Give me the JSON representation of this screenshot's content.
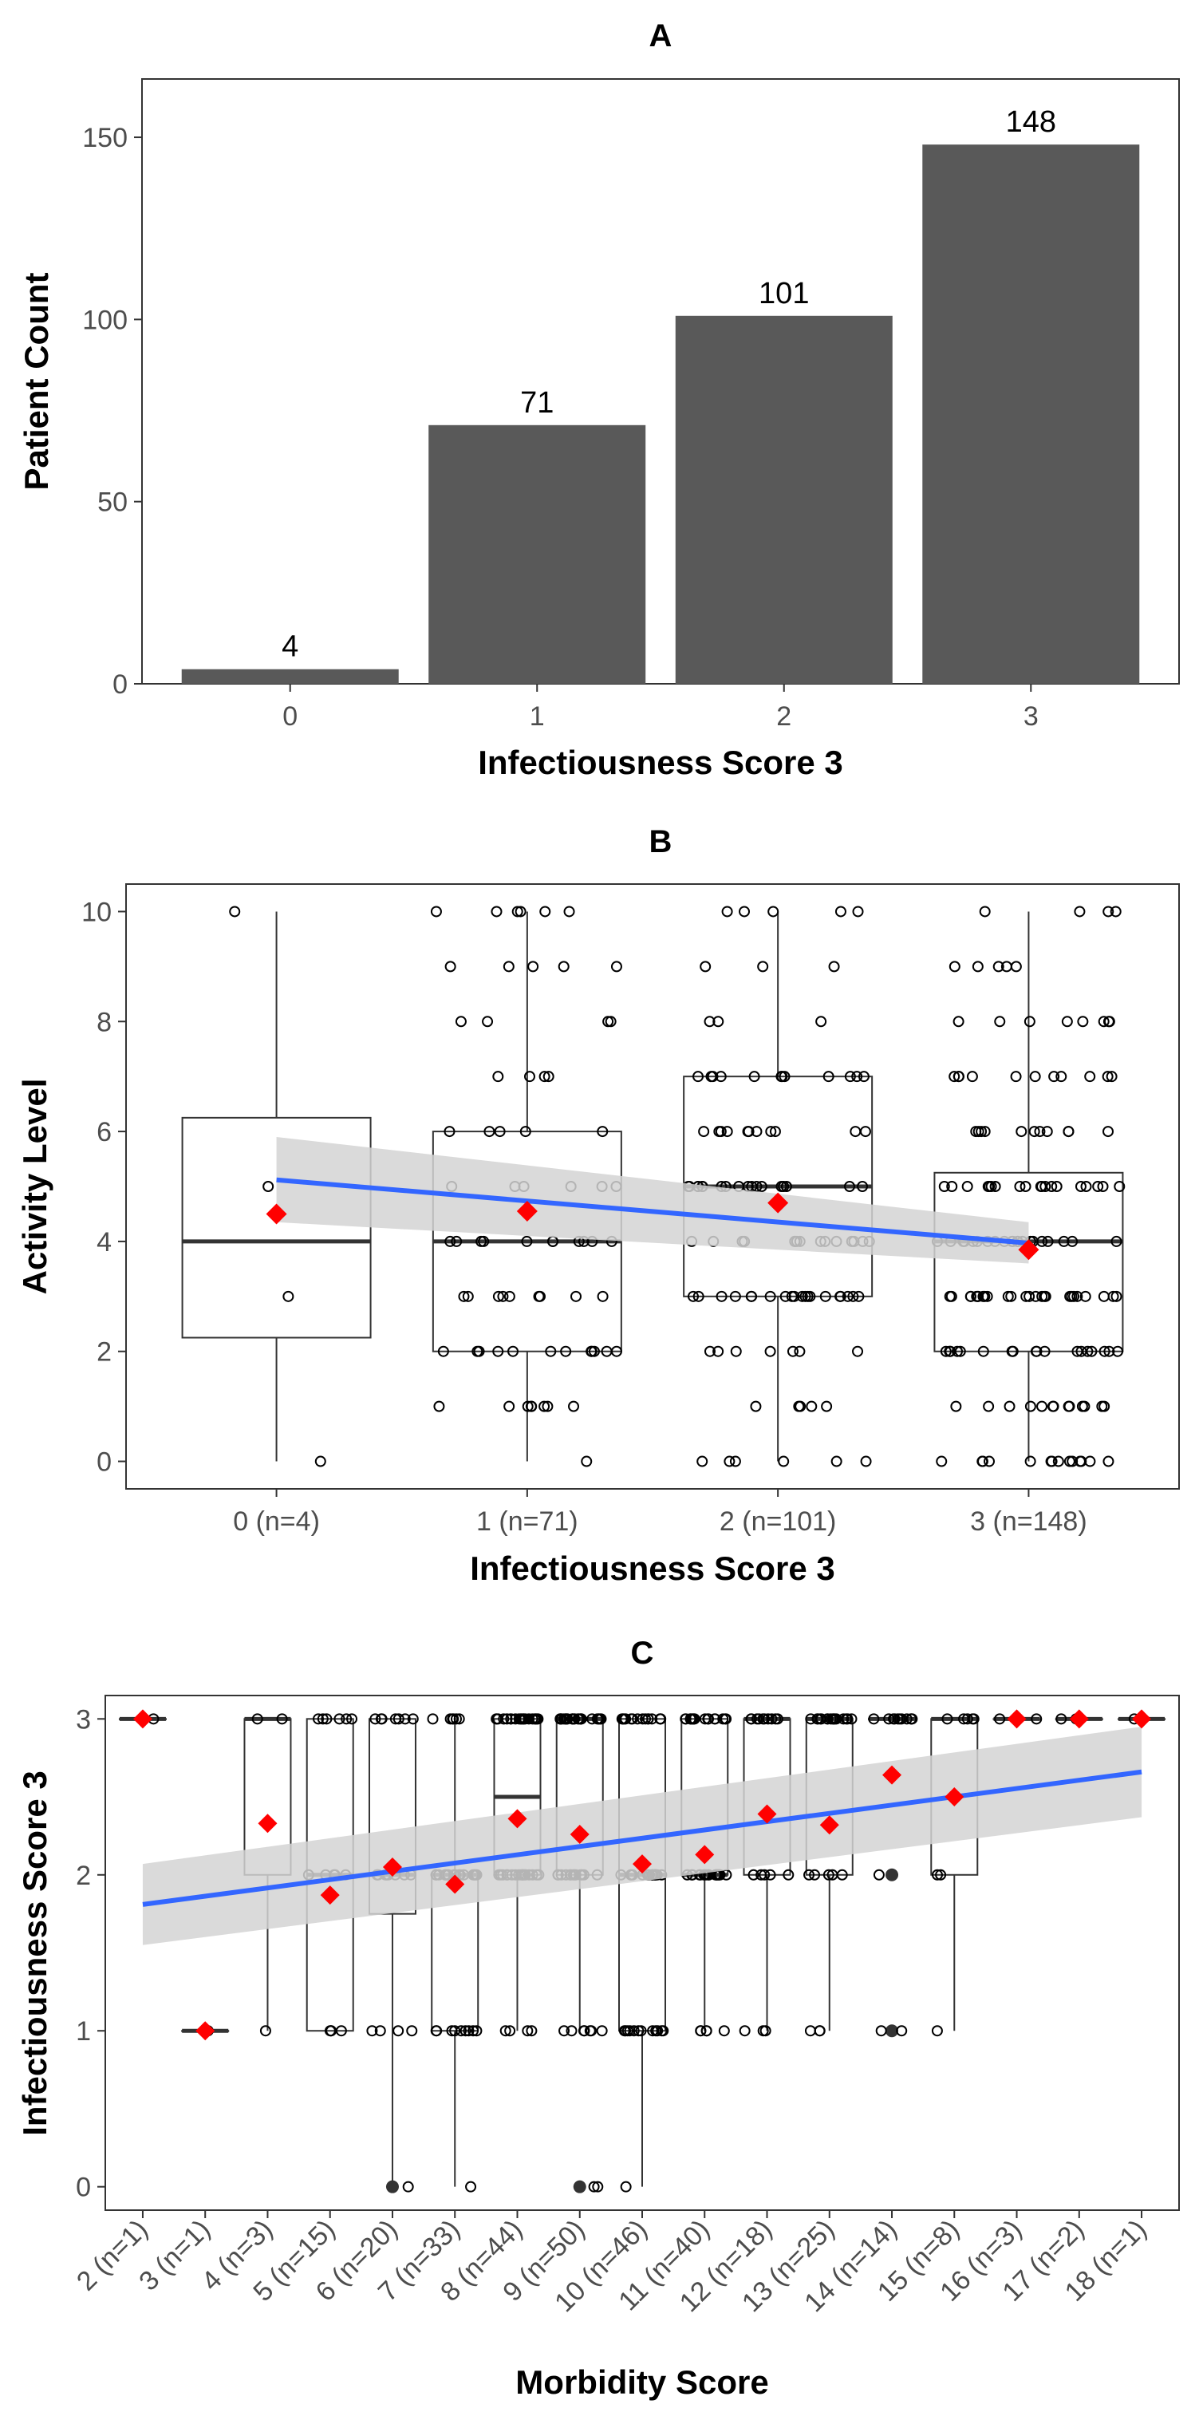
{
  "chart_data": [
    {
      "type": "bar",
      "title": "A",
      "xlabel": "Infectiousness Score 3",
      "ylabel": "Patient Count",
      "categories": [
        "0",
        "1",
        "2",
        "3"
      ],
      "values": [
        4,
        71,
        101,
        148
      ],
      "data_labels": [
        "4",
        "71",
        "101",
        "148"
      ],
      "ylim": [
        0,
        166
      ],
      "yticks": [
        0,
        50,
        100,
        150
      ],
      "ytick_labels": [
        "0",
        "50",
        "100",
        "150"
      ],
      "grid": false,
      "bar_color": "#595959"
    },
    {
      "type": "box",
      "title": "B",
      "xlabel": "Infectiousness Score 3",
      "ylabel": "Activity Level",
      "categories": [
        "0 (n=4)",
        "1 (n=71)",
        "2 (n=101)",
        "3 (n=148)"
      ],
      "ylim": [
        -0.5,
        10.5
      ],
      "yticks": [
        0,
        2,
        4,
        6,
        8,
        10
      ],
      "ytick_labels": [
        "0",
        "2",
        "4",
        "6",
        "8",
        "10"
      ],
      "boxes": [
        {
          "q1": 2.25,
          "median": 4,
          "q3": 6.25,
          "whisker_low": 0,
          "whisker_high": 10,
          "mean": 4.5
        },
        {
          "q1": 2,
          "median": 4,
          "q3": 6,
          "whisker_low": 0,
          "whisker_high": 10,
          "mean": 4.55
        },
        {
          "q1": 3,
          "median": 5,
          "q3": 7,
          "whisker_low": 0,
          "whisker_high": 10,
          "mean": 4.7
        },
        {
          "q1": 2,
          "median": 4,
          "q3": 5.25,
          "whisker_low": 0,
          "whisker_high": 10,
          "mean": 3.85
        }
      ],
      "trend": {
        "x_start": 1,
        "y_start": 5.12,
        "x_end": 4,
        "y_end": 3.97,
        "ci_start": [
          4.35,
          5.9
        ],
        "ci_end": [
          3.6,
          4.35
        ]
      },
      "points": [
        {
          "x": 1,
          "values": [
            0,
            3,
            5,
            10
          ]
        },
        {
          "x": 2,
          "values": [
            0,
            1,
            1,
            1,
            1,
            1,
            1,
            1,
            1,
            2,
            2,
            2,
            2,
            2,
            2,
            2,
            2,
            2,
            2,
            2,
            2,
            3,
            3,
            3,
            3,
            3,
            3,
            3,
            3,
            3,
            4,
            4,
            4,
            4,
            4,
            4,
            4,
            4,
            4,
            4,
            4,
            5,
            5,
            5,
            5,
            5,
            5,
            6,
            6,
            6,
            6,
            6,
            7,
            7,
            7,
            7,
            8,
            8,
            8,
            8,
            9,
            9,
            9,
            9,
            9,
            10,
            10,
            10,
            10,
            10,
            10
          ]
        },
        {
          "x": 3,
          "values": [
            0,
            0,
            0,
            0,
            0,
            0,
            1,
            1,
            1,
            1,
            1,
            2,
            2,
            2,
            2,
            2,
            2,
            2,
            3,
            3,
            3,
            3,
            3,
            3,
            3,
            3,
            3,
            3,
            3,
            3,
            3,
            3,
            3,
            3,
            3,
            3,
            3,
            3,
            4,
            4,
            4,
            4,
            4,
            4,
            4,
            4,
            4,
            4,
            4,
            4,
            4,
            4,
            4,
            5,
            5,
            5,
            5,
            5,
            5,
            5,
            5,
            5,
            5,
            5,
            5,
            5,
            5,
            5,
            5,
            5,
            5,
            6,
            6,
            6,
            6,
            6,
            6,
            6,
            6,
            6,
            6,
            6,
            7,
            7,
            7,
            7,
            7,
            7,
            7,
            7,
            7,
            7,
            7,
            7,
            8,
            8,
            8,
            9,
            9,
            9,
            10,
            10,
            10,
            10,
            10
          ]
        },
        {
          "x": 4,
          "values": [
            0,
            0,
            0,
            0,
            0,
            0,
            0,
            0,
            0,
            0,
            0,
            0,
            0,
            0,
            1,
            1,
            1,
            1,
            1,
            1,
            1,
            1,
            1,
            1,
            1,
            1,
            1,
            2,
            2,
            2,
            2,
            2,
            2,
            2,
            2,
            2,
            2,
            2,
            2,
            2,
            2,
            2,
            2,
            2,
            2,
            3,
            3,
            3,
            3,
            3,
            3,
            3,
            3,
            3,
            3,
            3,
            3,
            3,
            3,
            3,
            3,
            3,
            3,
            3,
            3,
            3,
            3,
            3,
            3,
            3,
            3,
            4,
            4,
            4,
            4,
            4,
            4,
            4,
            4,
            4,
            4,
            4,
            4,
            4,
            4,
            4,
            4,
            4,
            4,
            4,
            4,
            4,
            5,
            5,
            5,
            5,
            5,
            5,
            5,
            5,
            5,
            5,
            5,
            5,
            5,
            5,
            5,
            5,
            5,
            5,
            5,
            6,
            6,
            6,
            6,
            6,
            6,
            6,
            6,
            6,
            6,
            6,
            7,
            7,
            7,
            7,
            7,
            7,
            7,
            7,
            7,
            7,
            7,
            8,
            8,
            8,
            8,
            8,
            8,
            8,
            8,
            9,
            9,
            9,
            9,
            9,
            10,
            10,
            10,
            10
          ]
        }
      ],
      "mean_color": "#ff0000",
      "trend_color": "#3366ff",
      "ci_color": "#d3d3d3"
    },
    {
      "type": "box",
      "title": "C",
      "xlabel": "Morbidity Score",
      "ylabel": "Infectiousness Score 3",
      "categories": [
        "2 (n=1)",
        "3 (n=1)",
        "4 (n=3)",
        "5 (n=15)",
        "6 (n=20)",
        "7 (n=33)",
        "8 (n=44)",
        "9 (n=50)",
        "10 (n=46)",
        "11 (n=40)",
        "12 (n=18)",
        "13 (n=25)",
        "14 (n=14)",
        "15 (n=8)",
        "16 (n=3)",
        "17 (n=2)",
        "18 (n=1)"
      ],
      "ylim": [
        -0.15,
        3.15
      ],
      "yticks": [
        0,
        1,
        2,
        3
      ],
      "ytick_labels": [
        "0",
        "1",
        "2",
        "3"
      ],
      "boxes": [
        {
          "q1": 3,
          "median": 3,
          "q3": 3,
          "whisker_low": 3,
          "whisker_high": 3,
          "mean": 3.0
        },
        {
          "q1": 1,
          "median": 1,
          "q3": 1,
          "whisker_low": 1,
          "whisker_high": 1,
          "mean": 1.0
        },
        {
          "q1": 2,
          "median": 3,
          "q3": 3,
          "whisker_low": 1,
          "whisker_high": 3,
          "mean": 2.33
        },
        {
          "q1": 1,
          "median": 2,
          "q3": 3,
          "whisker_low": 1,
          "whisker_high": 3,
          "mean": 1.87
        },
        {
          "q1": 1.75,
          "median": 2,
          "q3": 3,
          "whisker_low": 0,
          "whisker_high": 3,
          "mean": 2.05
        },
        {
          "q1": 1,
          "median": 2,
          "q3": 2,
          "whisker_low": 0,
          "whisker_high": 3,
          "mean": 1.94
        },
        {
          "q1": 2,
          "median": 2.5,
          "q3": 3,
          "whisker_low": 1,
          "whisker_high": 3,
          "mean": 2.36
        },
        {
          "q1": 2,
          "median": 3,
          "q3": 3,
          "whisker_low": 1,
          "whisker_high": 3,
          "mean": 2.26
        },
        {
          "q1": 1,
          "median": 2,
          "q3": 3,
          "whisker_low": 0,
          "whisker_high": 3,
          "mean": 2.07
        },
        {
          "q1": 2,
          "median": 2,
          "q3": 3,
          "whisker_low": 1,
          "whisker_high": 3,
          "mean": 2.13
        },
        {
          "q1": 2,
          "median": 3,
          "q3": 3,
          "whisker_low": 1,
          "whisker_high": 3,
          "mean": 2.39
        },
        {
          "q1": 2,
          "median": 3,
          "q3": 3,
          "whisker_low": 1,
          "whisker_high": 3,
          "mean": 2.32
        },
        {
          "q1": 3,
          "median": 3,
          "q3": 3,
          "whisker_low": 3,
          "whisker_high": 3,
          "mean": 2.64
        },
        {
          "q1": 2,
          "median": 3,
          "q3": 3,
          "whisker_low": 1,
          "whisker_high": 3,
          "mean": 2.5
        },
        {
          "q1": 3,
          "median": 3,
          "q3": 3,
          "whisker_low": 3,
          "whisker_high": 3,
          "mean": 3.0
        },
        {
          "q1": 3,
          "median": 3,
          "q3": 3,
          "whisker_low": 3,
          "whisker_high": 3,
          "mean": 3.0
        },
        {
          "q1": 3,
          "median": 3,
          "q3": 3,
          "whisker_low": 3,
          "whisker_high": 3,
          "mean": 3.0
        }
      ],
      "outliers": [
        {
          "x": 5,
          "value": 0
        },
        {
          "x": 8,
          "value": 0
        },
        {
          "x": 13,
          "value": 2
        },
        {
          "x": 13,
          "value": 1
        }
      ],
      "trend": {
        "x_start": 1,
        "y_start": 1.81,
        "x_end": 17,
        "y_end": 2.66,
        "ci_start": [
          1.55,
          2.07
        ],
        "ci_end": [
          2.37,
          2.95
        ]
      },
      "points": [
        {
          "x": 1,
          "values": [
            3
          ]
        },
        {
          "x": 2,
          "values": [
            1
          ]
        },
        {
          "x": 3,
          "values": [
            1,
            3,
            3
          ]
        },
        {
          "x": 4,
          "values": [
            1,
            1,
            1,
            1,
            2,
            2,
            2,
            2,
            2,
            3,
            3,
            3,
            3,
            3,
            3
          ]
        },
        {
          "x": 5,
          "values": [
            0,
            1,
            1,
            1,
            1,
            2,
            2,
            2,
            2,
            2,
            2,
            2,
            2,
            3,
            3,
            3,
            3,
            3,
            3,
            3
          ]
        },
        {
          "x": 6,
          "values": [
            0,
            1,
            1,
            1,
            1,
            1,
            1,
            1,
            1,
            1,
            2,
            2,
            2,
            2,
            2,
            2,
            2,
            2,
            2,
            2,
            2,
            2,
            2,
            2,
            2,
            2,
            2,
            3,
            3,
            3,
            3,
            3,
            3
          ]
        },
        {
          "x": 7,
          "values": [
            1,
            1,
            1,
            1,
            2,
            2,
            2,
            2,
            2,
            2,
            2,
            2,
            2,
            2,
            2,
            2,
            2,
            2,
            2,
            2,
            2,
            2,
            3,
            3,
            3,
            3,
            3,
            3,
            3,
            3,
            3,
            3,
            3,
            3,
            3,
            3,
            3,
            3,
            3,
            3,
            3,
            3,
            3,
            3
          ]
        },
        {
          "x": 8,
          "values": [
            0,
            0,
            1,
            1,
            1,
            1,
            1,
            1,
            1,
            2,
            2,
            2,
            2,
            2,
            2,
            2,
            2,
            2,
            2,
            2,
            2,
            2,
            3,
            3,
            3,
            3,
            3,
            3,
            3,
            3,
            3,
            3,
            3,
            3,
            3,
            3,
            3,
            3,
            3,
            3,
            3,
            3,
            3,
            3,
            3,
            3,
            3,
            3,
            3,
            3
          ]
        },
        {
          "x": 9,
          "values": [
            0,
            1,
            1,
            1,
            1,
            1,
            1,
            1,
            1,
            1,
            1,
            1,
            1,
            2,
            2,
            2,
            2,
            2,
            2,
            2,
            2,
            2,
            2,
            2,
            2,
            2,
            2,
            2,
            2,
            2,
            3,
            3,
            3,
            3,
            3,
            3,
            3,
            3,
            3,
            3,
            3,
            3,
            3,
            3,
            3,
            3
          ]
        },
        {
          "x": 10,
          "values": [
            1,
            1,
            1,
            1,
            1,
            2,
            2,
            2,
            2,
            2,
            2,
            2,
            2,
            2,
            2,
            2,
            2,
            2,
            2,
            2,
            2,
            2,
            2,
            3,
            3,
            3,
            3,
            3,
            3,
            3,
            3,
            3,
            3,
            3,
            3,
            3,
            3,
            3,
            3,
            3
          ]
        },
        {
          "x": 11,
          "values": [
            1,
            1,
            1,
            2,
            2,
            2,
            2,
            2,
            3,
            3,
            3,
            3,
            3,
            3,
            3,
            3,
            3,
            3
          ]
        },
        {
          "x": 12,
          "values": [
            1,
            1,
            1,
            2,
            2,
            2,
            2,
            2,
            3,
            3,
            3,
            3,
            3,
            3,
            3,
            3,
            3,
            3,
            3,
            3,
            3,
            3,
            3,
            3,
            3
          ]
        },
        {
          "x": 13,
          "values": [
            1,
            1,
            2,
            3,
            3,
            3,
            3,
            3,
            3,
            3,
            3,
            3,
            3,
            3
          ]
        },
        {
          "x": 14,
          "values": [
            1,
            2,
            2,
            3,
            3,
            3,
            3,
            3
          ]
        },
        {
          "x": 15,
          "values": [
            3,
            3,
            3
          ]
        },
        {
          "x": 16,
          "values": [
            3,
            3
          ]
        },
        {
          "x": 17,
          "values": [
            3
          ]
        }
      ],
      "mean_color": "#ff0000",
      "trend_color": "#3366ff",
      "ci_color": "#d3d3d3"
    }
  ]
}
